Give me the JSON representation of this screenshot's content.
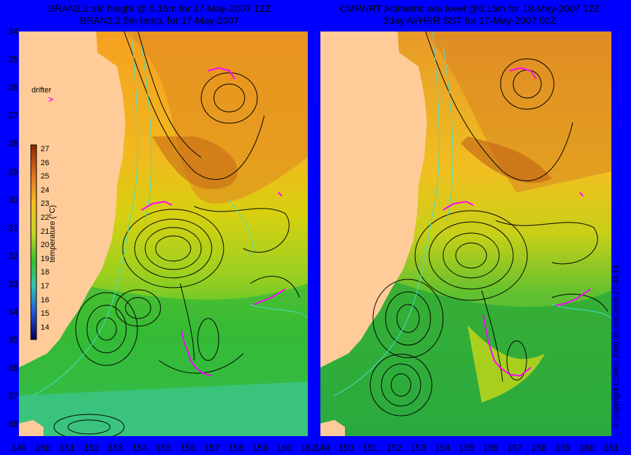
{
  "left_panel": {
    "title_line1": "BRAN2.2 sfc height @ 0.15m for 17-May-2007 12Z",
    "title_line2": "BRAN2.2 5m temp. for 17-May-2007"
  },
  "right_panel": {
    "title_line1": "CMRNRT Altimetric sea level  @0.15m  for 18-May-2007 12Z",
    "title_line2": "3day AVHRR SST for 17-May-2007 00Z"
  },
  "latitude_labels": [
    "24",
    "25",
    "26",
    "27",
    "28",
    "29",
    "30",
    "31",
    "32",
    "33",
    "34",
    "35",
    "36",
    "37",
    "38"
  ],
  "longitude_labels": [
    "149",
    "150",
    "151",
    "152",
    "153",
    "154",
    "155",
    "156",
    "157",
    "158",
    "159",
    "160",
    "161"
  ],
  "colorbar": {
    "title": "temperature (°C)",
    "ticks": [
      "27",
      "26",
      "25",
      "24",
      "23",
      "22",
      "21",
      "20",
      "19",
      "18",
      "17",
      "16",
      "15",
      "14"
    ]
  },
  "drifter": {
    "label": "drifter",
    "marker": ">"
  },
  "copyright": "© Copyright CSIRO 2008   06-Oct-2008 17:44:14",
  "colors": {
    "background": "#0000FF",
    "land": "#FFCC99",
    "drifter": "#FF00FF",
    "contour": "#000000",
    "bathymetry": "#40E0D0"
  }
}
